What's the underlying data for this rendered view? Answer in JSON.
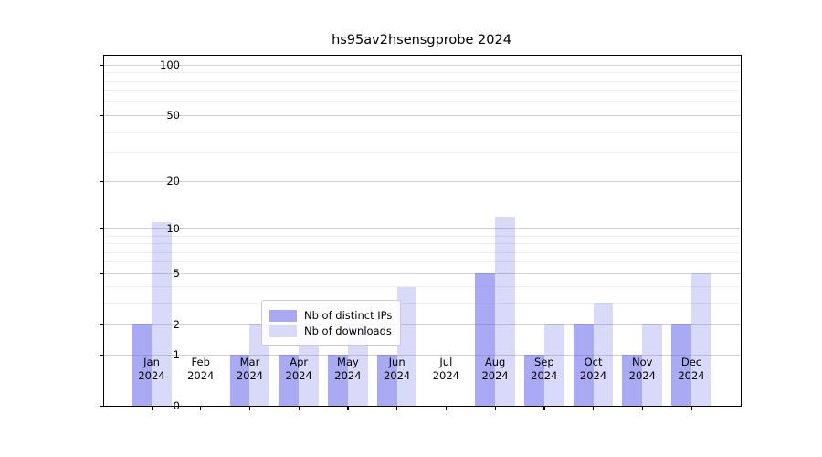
{
  "chart_data": {
    "type": "bar",
    "title": "hs95av2hsensgprobe 2024",
    "categories": [
      "Jan 2024",
      "Feb 2024",
      "Mar 2024",
      "Apr 2024",
      "May 2024",
      "Jun 2024",
      "Jul 2024",
      "Aug 2024",
      "Sep 2024",
      "Oct 2024",
      "Nov 2024",
      "Dec 2024"
    ],
    "x_tick_month": [
      "Jan",
      "Feb",
      "Mar",
      "Apr",
      "May",
      "Jun",
      "Jul",
      "Aug",
      "Sep",
      "Oct",
      "Nov",
      "Dec"
    ],
    "x_tick_year": "2024",
    "series": [
      {
        "name": "Nb of distinct IPs",
        "color": "#a9a9f3",
        "fill": "rgba(90,90,234,0.52)",
        "values": [
          2,
          0,
          1,
          1,
          1,
          1,
          0,
          5,
          1,
          2,
          1,
          2
        ]
      },
      {
        "name": "Nb of downloads",
        "color": "#d9d9f8",
        "fill": "rgba(90,90,234,0.23)",
        "values": [
          11,
          0,
          2,
          2,
          2,
          4,
          0,
          12,
          2,
          3,
          2,
          5
        ]
      }
    ],
    "yaxis": {
      "scale": "log1p",
      "ticks": [
        0,
        1,
        2,
        5,
        10,
        20,
        50,
        100
      ],
      "minor_ticks": [
        3,
        4,
        6,
        7,
        8,
        9,
        30,
        40,
        60,
        70,
        80,
        90
      ],
      "ylim_bottom": 0
    },
    "grid": {
      "major_color": "#d2d2d2",
      "minor_color": "#efefef"
    },
    "legend_position": "lower center",
    "spine_color": "#000000"
  }
}
